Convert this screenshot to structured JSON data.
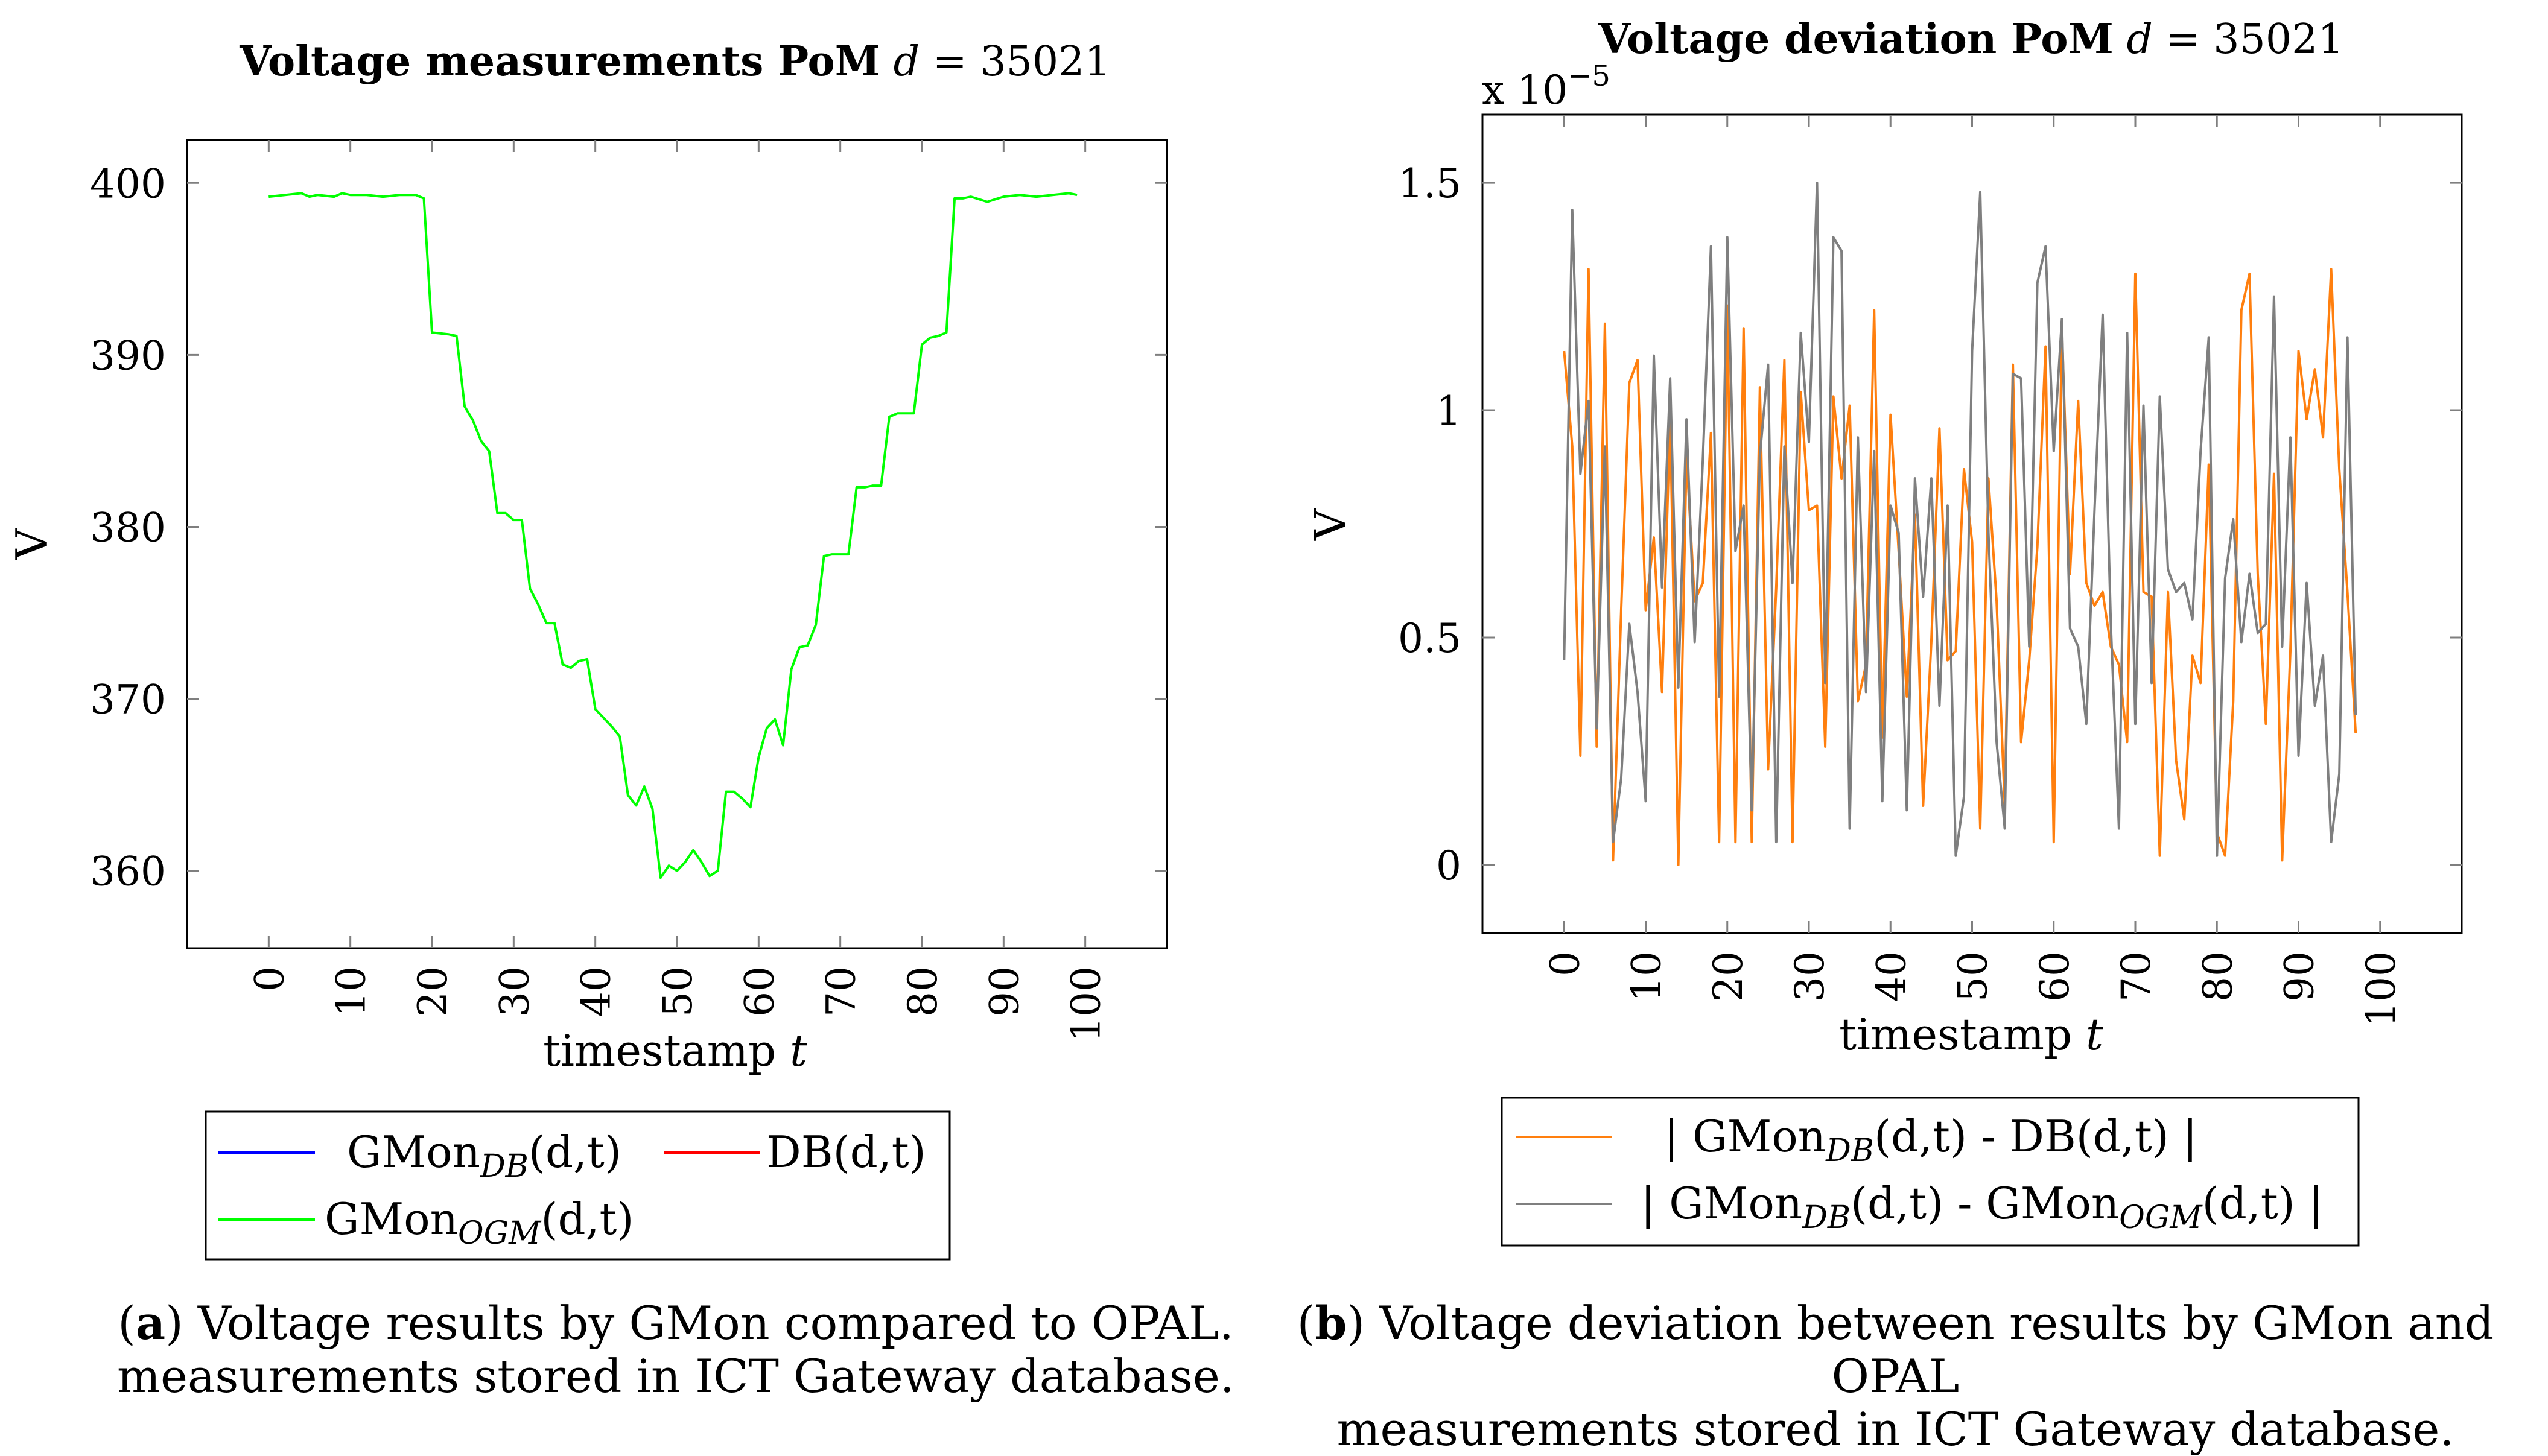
{
  "chart_data": [
    {
      "id": "a",
      "type": "line",
      "title": "Voltage measurements PoM d = 35021",
      "title_bold": "Voltage measurements PoM",
      "title_var": "d",
      "title_rest": " = 35021",
      "xlabel": "timestamp t",
      "xlabel_text": "timestamp",
      "xlabel_var": "t",
      "ylabel": "V",
      "xlim": [
        -10,
        110
      ],
      "ylim": [
        355.5,
        402.5
      ],
      "xticks": [
        0,
        10,
        20,
        30,
        40,
        50,
        60,
        70,
        80,
        90,
        100
      ],
      "xtick_labels": [
        "0",
        "10",
        "20",
        "30",
        "40",
        "50",
        "60",
        "70",
        "80",
        "90",
        "100"
      ],
      "yticks": [
        360,
        370,
        380,
        390,
        400
      ],
      "ytick_labels": [
        "360",
        "370",
        "380",
        "390",
        "400"
      ],
      "series": [
        {
          "name": "GMonDB(d,t)",
          "legend_base": "GMon",
          "legend_sub": "DB",
          "legend_rest": "(d,t)",
          "color": "#0000ff",
          "values": []
        },
        {
          "name": "DB(d,t)",
          "legend_base": "DB(d,t)",
          "legend_sub": "",
          "legend_rest": "",
          "color": "#ff0000",
          "values": []
        },
        {
          "name": "GMonOGM(d,t)",
          "legend_base": "GMon",
          "legend_sub": "OGM",
          "legend_rest": "(d,t)",
          "color": "#00ff00",
          "x": [
            0,
            2,
            4,
            5,
            6,
            8,
            9,
            10,
            12,
            14,
            16,
            18,
            19,
            20,
            22,
            23,
            24,
            25,
            26,
            27,
            28,
            29,
            30,
            31,
            32,
            33,
            34,
            35,
            36,
            37,
            38,
            39,
            40,
            41,
            42,
            43,
            44,
            45,
            46,
            47,
            48,
            49,
            50,
            51,
            52,
            53,
            54,
            55,
            56,
            57,
            58,
            59,
            60,
            61,
            62,
            63,
            64,
            65,
            66,
            67,
            68,
            69,
            70,
            71,
            72,
            73,
            74,
            75,
            76,
            77,
            78,
            79,
            80,
            81,
            82,
            83,
            84,
            85,
            86,
            88,
            90,
            92,
            94,
            96,
            98,
            99
          ],
          "values": [
            399.2,
            399.3,
            399.4,
            399.2,
            399.3,
            399.2,
            399.4,
            399.3,
            399.3,
            399.2,
            399.3,
            399.3,
            399.1,
            391.3,
            391.2,
            391.1,
            387,
            386.2,
            385,
            384.4,
            380.8,
            380.8,
            380.4,
            380.4,
            376.4,
            375.5,
            374.4,
            374.4,
            372,
            371.8,
            372.2,
            372.3,
            369.4,
            368.9,
            368.4,
            367.8,
            364.4,
            363.8,
            364.9,
            363.6,
            359.6,
            360.3,
            360,
            360.5,
            361.2,
            360.5,
            359.7,
            360,
            364.6,
            364.6,
            364.2,
            363.7,
            366.6,
            368.3,
            368.8,
            367.3,
            371.7,
            373,
            373.1,
            374.3,
            378.3,
            378.4,
            378.4,
            378.4,
            382.3,
            382.3,
            382.4,
            382.4,
            386.4,
            386.6,
            386.6,
            386.6,
            390.6,
            391,
            391.1,
            391.3,
            399.1,
            399.1,
            399.2,
            398.9,
            399.2,
            399.3,
            399.2,
            399.3,
            399.4,
            399.3
          ]
        }
      ]
    },
    {
      "id": "b",
      "type": "line",
      "title": "Voltage deviation PoM d = 35021",
      "title_bold": "Voltage deviation PoM",
      "title_var": "d",
      "title_rest": " = 35021",
      "scale_label": "x 10",
      "scale_exp": "−5",
      "xlabel": "timestamp t",
      "xlabel_text": "timestamp",
      "xlabel_var": "t",
      "ylabel": "V",
      "xlim": [
        -10,
        110
      ],
      "ylim": [
        -0.15,
        1.65
      ],
      "xticks": [
        0,
        10,
        20,
        30,
        40,
        50,
        60,
        70,
        80,
        90,
        100
      ],
      "xtick_labels": [
        "0",
        "10",
        "20",
        "30",
        "40",
        "50",
        "60",
        "70",
        "80",
        "90",
        "100"
      ],
      "yticks": [
        0,
        0.5,
        1,
        1.5
      ],
      "ytick_labels": [
        "0",
        "0.5",
        "1",
        "1.5"
      ],
      "series": [
        {
          "name": "| GMonDB(d,t) - DB(d,t) |",
          "legend_pre": "| GMon",
          "legend_sub": "DB",
          "legend_rest": "(d,t) - DB(d,t) |",
          "color": "#ff7f0e",
          "values": [
            1.13,
            0.92,
            0.24,
            1.31,
            0.26,
            1.19,
            0.01,
            0.56,
            1.06,
            1.11,
            0.56,
            0.72,
            0.38,
            0.99,
            0,
            0.9,
            0.58,
            0.62,
            0.95,
            0.05,
            1.23,
            0.05,
            1.18,
            0.05,
            1.05,
            0.21,
            0.61,
            1.11,
            0.05,
            1.04,
            0.78,
            0.79,
            0.26,
            1.03,
            0.85,
            1.01,
            0.36,
            0.44,
            1.22,
            0.28,
            0.99,
            0.69,
            0.37,
            0.77,
            0.13,
            0.49,
            0.96,
            0.45,
            0.47,
            0.87,
            0.71,
            0.08,
            0.85,
            0.58,
            0.13,
            1.1,
            0.27,
            0.45,
            0.7,
            1.14,
            0.05,
            1.18,
            0.64,
            1.02,
            0.62,
            0.57,
            0.6,
            0.48,
            0.44,
            0.27,
            1.3,
            0.6,
            0.59,
            0.02,
            0.6,
            0.23,
            0.1,
            0.46,
            0.4,
            0.88,
            0.07,
            0.02,
            0.36,
            1.22,
            1.3,
            0.64,
            0.31,
            0.86,
            0.01,
            0.47,
            1.13,
            0.98,
            1.09,
            0.94,
            1.31,
            0.87,
            0.6,
            0.29
          ]
        },
        {
          "name": "| GMonDB(d,t) - GMonOGM(d,t) |",
          "legend_pre": "| GMon",
          "legend_sub": "DB",
          "legend_mid": "(d,t) - GMon",
          "legend_sub2": "OGM",
          "legend_rest": "(d,t) |",
          "color": "#7f7f7f",
          "values": [
            0.45,
            1.44,
            0.86,
            1.02,
            0.3,
            0.92,
            0.05,
            0.19,
            0.53,
            0.38,
            0.14,
            1.12,
            0.61,
            1.07,
            0.39,
            0.98,
            0.49,
            0.89,
            1.36,
            0.37,
            1.38,
            0.69,
            0.79,
            0.12,
            0.9,
            1.1,
            0.05,
            0.92,
            0.62,
            1.17,
            0.93,
            1.5,
            0.4,
            1.38,
            1.35,
            0.08,
            0.94,
            0.38,
            0.91,
            0.14,
            0.79,
            0.73,
            0.12,
            0.85,
            0.59,
            0.85,
            0.35,
            0.79,
            0.02,
            0.15,
            1.13,
            1.48,
            0.73,
            0.27,
            0.08,
            1.08,
            1.07,
            0.48,
            1.28,
            1.36,
            0.91,
            1.2,
            0.52,
            0.48,
            0.31,
            0.78,
            1.21,
            0.53,
            0.08,
            1.17,
            0.31,
            1.01,
            0.4,
            1.03,
            0.65,
            0.6,
            0.62,
            0.54,
            0.91,
            1.16,
            0.02,
            0.63,
            0.76,
            0.49,
            0.64,
            0.51,
            0.53,
            1.25,
            0.48,
            0.94,
            0.24,
            0.62,
            0.35,
            0.46,
            0.05,
            0.2,
            1.16,
            0.33
          ]
        }
      ]
    }
  ],
  "captions": [
    {
      "label": "a",
      "line1": "Voltage results by GMon compared to OPAL.",
      "line2": "measurements stored in ICT Gateway database."
    },
    {
      "label": "b",
      "line1": "Voltage deviation between results by GMon and OPAL",
      "line2": "measurements stored in ICT Gateway database."
    }
  ]
}
